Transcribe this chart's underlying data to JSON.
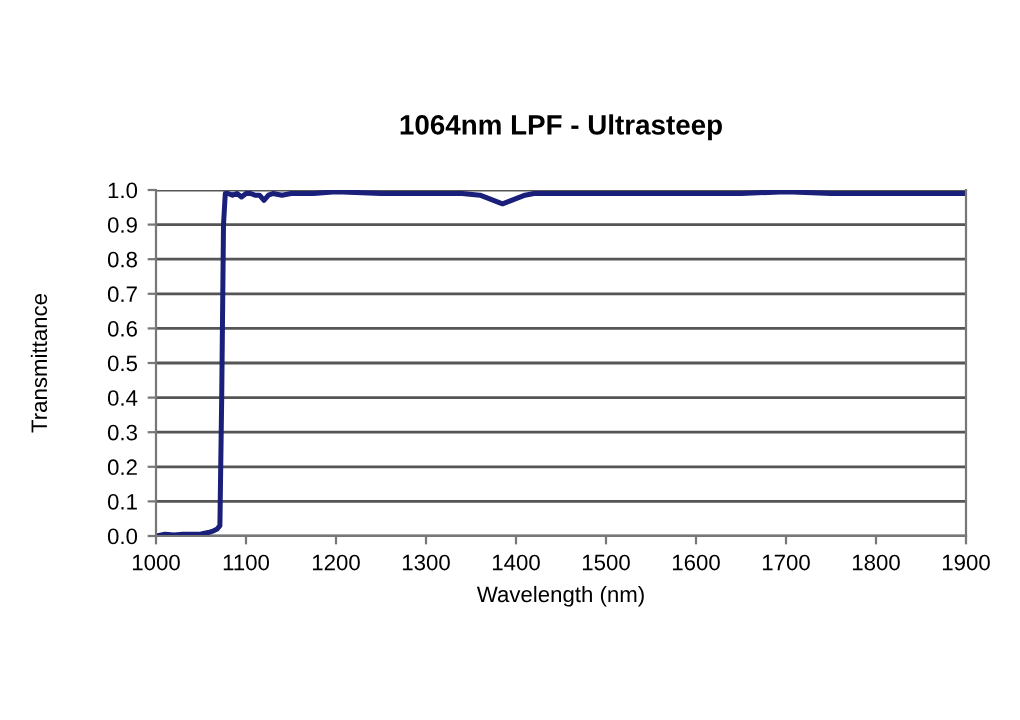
{
  "chart_data": {
    "type": "line",
    "title": "1064nm LPF - Ultrasteep",
    "xlabel": "Wavelength (nm)",
    "ylabel": "Transmittance",
    "series": [
      {
        "color": "#1a1f7a",
        "x": [
          1000,
          1010,
          1020,
          1030,
          1040,
          1050,
          1058,
          1064,
          1068,
          1071,
          1073,
          1075,
          1077,
          1080,
          1085,
          1090,
          1095,
          1100,
          1105,
          1110,
          1115,
          1120,
          1125,
          1130,
          1140,
          1150,
          1175,
          1200,
          1250,
          1300,
          1340,
          1360,
          1370,
          1380,
          1385,
          1390,
          1400,
          1410,
          1420,
          1450,
          1500,
          1550,
          1600,
          1650,
          1700,
          1750,
          1800,
          1850,
          1900
        ],
        "values": [
          0.0,
          0.005,
          0.003,
          0.005,
          0.005,
          0.006,
          0.01,
          0.015,
          0.02,
          0.03,
          0.4,
          0.9,
          0.99,
          0.99,
          0.985,
          0.99,
          0.98,
          0.99,
          0.99,
          0.985,
          0.985,
          0.97,
          0.985,
          0.99,
          0.985,
          0.99,
          0.99,
          0.995,
          0.99,
          0.99,
          0.99,
          0.985,
          0.975,
          0.965,
          0.96,
          0.965,
          0.975,
          0.985,
          0.99,
          0.99,
          0.99,
          0.99,
          0.99,
          0.99,
          0.995,
          0.99,
          0.99,
          0.99,
          0.99
        ]
      }
    ],
    "xlim": [
      1000,
      1900
    ],
    "xticks": [
      1000,
      1100,
      1200,
      1300,
      1400,
      1500,
      1600,
      1700,
      1800,
      1900
    ],
    "ylim": [
      0,
      1
    ],
    "yticks": [
      {
        "value": 0,
        "label": "0.0"
      },
      {
        "value": 0.1,
        "label": "0.1"
      },
      {
        "value": 0.2,
        "label": "0.2"
      },
      {
        "value": 0.3,
        "label": "0.3"
      },
      {
        "value": 0.4,
        "label": "0.4"
      },
      {
        "value": 0.5,
        "label": "0.5"
      },
      {
        "value": 0.6,
        "label": "0.6"
      },
      {
        "value": 0.7,
        "label": "0.7"
      },
      {
        "value": 0.8,
        "label": "0.8"
      },
      {
        "value": 0.9,
        "label": "0.9"
      },
      {
        "value": 1,
        "label": "1.0"
      }
    ],
    "grid": "y",
    "legend": false
  }
}
